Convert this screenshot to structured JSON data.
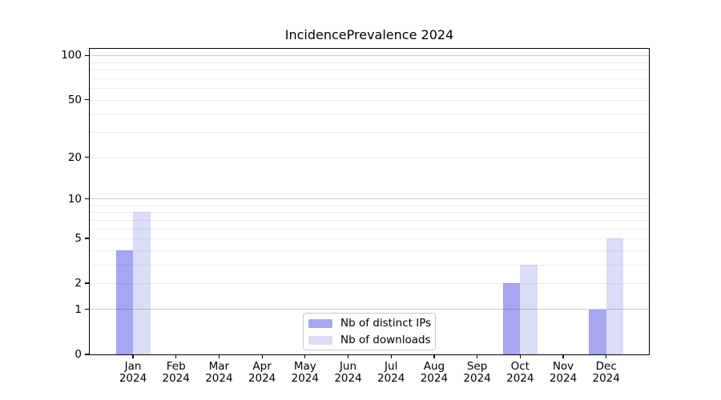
{
  "title": "IncidencePrevalence 2024",
  "chart_data": {
    "type": "bar",
    "title": "IncidencePrevalence 2024",
    "categories": [
      "Jan",
      "Feb",
      "Mar",
      "Apr",
      "May",
      "Jun",
      "Jul",
      "Aug",
      "Sep",
      "Oct",
      "Nov",
      "Dec"
    ],
    "x_year_label": "2024",
    "series": [
      {
        "name": "Nb of distinct IPs",
        "color": "#a6a6f1",
        "values": [
          4,
          0,
          0,
          0,
          0,
          0,
          0,
          0,
          0,
          2,
          0,
          1
        ]
      },
      {
        "name": "Nb of downloads",
        "color": "#dcdcf9",
        "values": [
          8,
          0,
          0,
          0,
          0,
          0,
          0,
          0,
          0,
          3,
          0,
          5
        ]
      }
    ],
    "y_scale": "log1p",
    "ylim": [
      0,
      111
    ],
    "y_ticks": [
      0,
      1,
      2,
      5,
      10,
      20,
      50,
      100
    ],
    "grid": {
      "major_values": [
        1,
        10,
        100
      ],
      "minor_values": [
        2,
        3,
        4,
        5,
        6,
        7,
        8,
        9,
        20,
        30,
        40,
        50,
        60,
        70,
        80,
        90
      ]
    },
    "legend_position": "lower center",
    "axis_color": "#000000",
    "background_color": "#ffffff"
  }
}
